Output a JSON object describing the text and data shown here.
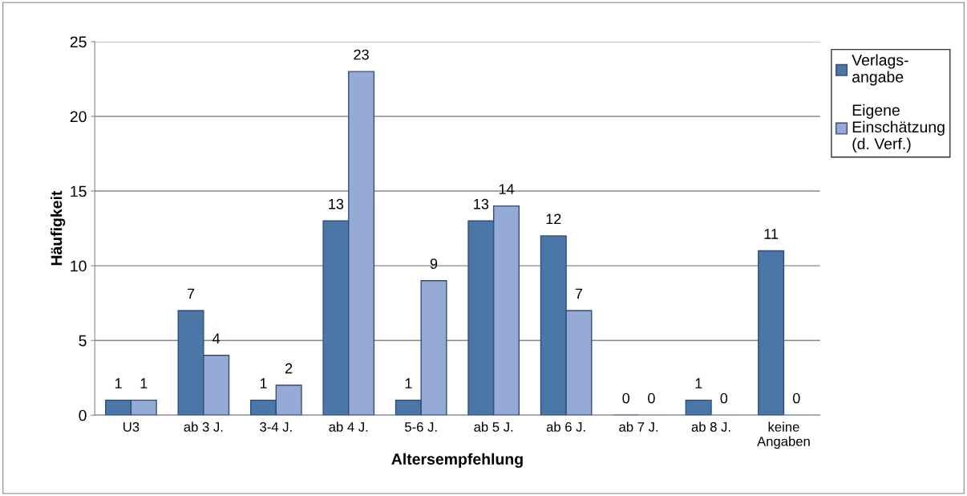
{
  "chart_data": {
    "type": "bar",
    "xlabel": "Altersempfehlung",
    "ylabel": "Häufigkeit",
    "categories": [
      "U3",
      "ab 3 J.",
      "3-4 J.",
      "ab 4 J.",
      "5-6 J.",
      "ab 5 J.",
      "ab 6 J.",
      "ab 7 J.",
      "ab 8 J.",
      "keine\nAngaben"
    ],
    "series": [
      {
        "name": "Verlags-\nangabe",
        "color": "#4a76a8",
        "values": [
          1,
          7,
          1,
          13,
          1,
          13,
          12,
          0,
          1,
          11
        ]
      },
      {
        "name": "Eigene\nEinschätzung\n(d. Verf.)",
        "color": "#95abd6",
        "values": [
          1,
          4,
          2,
          23,
          9,
          14,
          7,
          0,
          0,
          0
        ]
      }
    ],
    "ylim": [
      0,
      25
    ],
    "yticks": [
      0,
      5,
      10,
      15,
      20,
      25
    ],
    "grid": "y",
    "legend": "right",
    "data_labels": true
  }
}
